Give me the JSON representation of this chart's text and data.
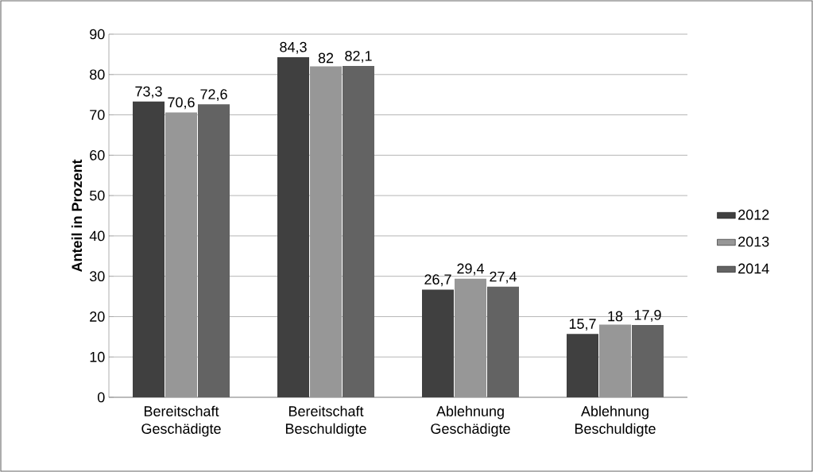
{
  "chart_data": {
    "type": "bar",
    "ylabel": "Anteil in Prozent",
    "categories": [
      "Bereitschaft Geschädigte",
      "Bereitschaft Beschuldigte",
      "Ablehnung Geschädigte",
      "Ablehnung Beschuldigte"
    ],
    "series": [
      {
        "name": "2012",
        "color": "#404040",
        "values": [
          73.3,
          84.3,
          26.7,
          15.7
        ],
        "value_labels": [
          "73,3",
          "84,3",
          "26,7",
          "15,7"
        ]
      },
      {
        "name": "2013",
        "color": "#979797",
        "values": [
          70.6,
          82,
          29.4,
          18
        ],
        "value_labels": [
          "70,6",
          "82",
          "29,4",
          "18"
        ]
      },
      {
        "name": "2014",
        "color": "#636363",
        "values": [
          72.6,
          82.1,
          27.4,
          17.9
        ],
        "value_labels": [
          "72,6",
          "82,1",
          "27,4",
          "17,9"
        ]
      }
    ],
    "ylim": [
      0,
      90
    ],
    "yticks": [
      0,
      10,
      20,
      30,
      40,
      50,
      60,
      70,
      80,
      90
    ],
    "grid": "y",
    "legend": "right"
  }
}
